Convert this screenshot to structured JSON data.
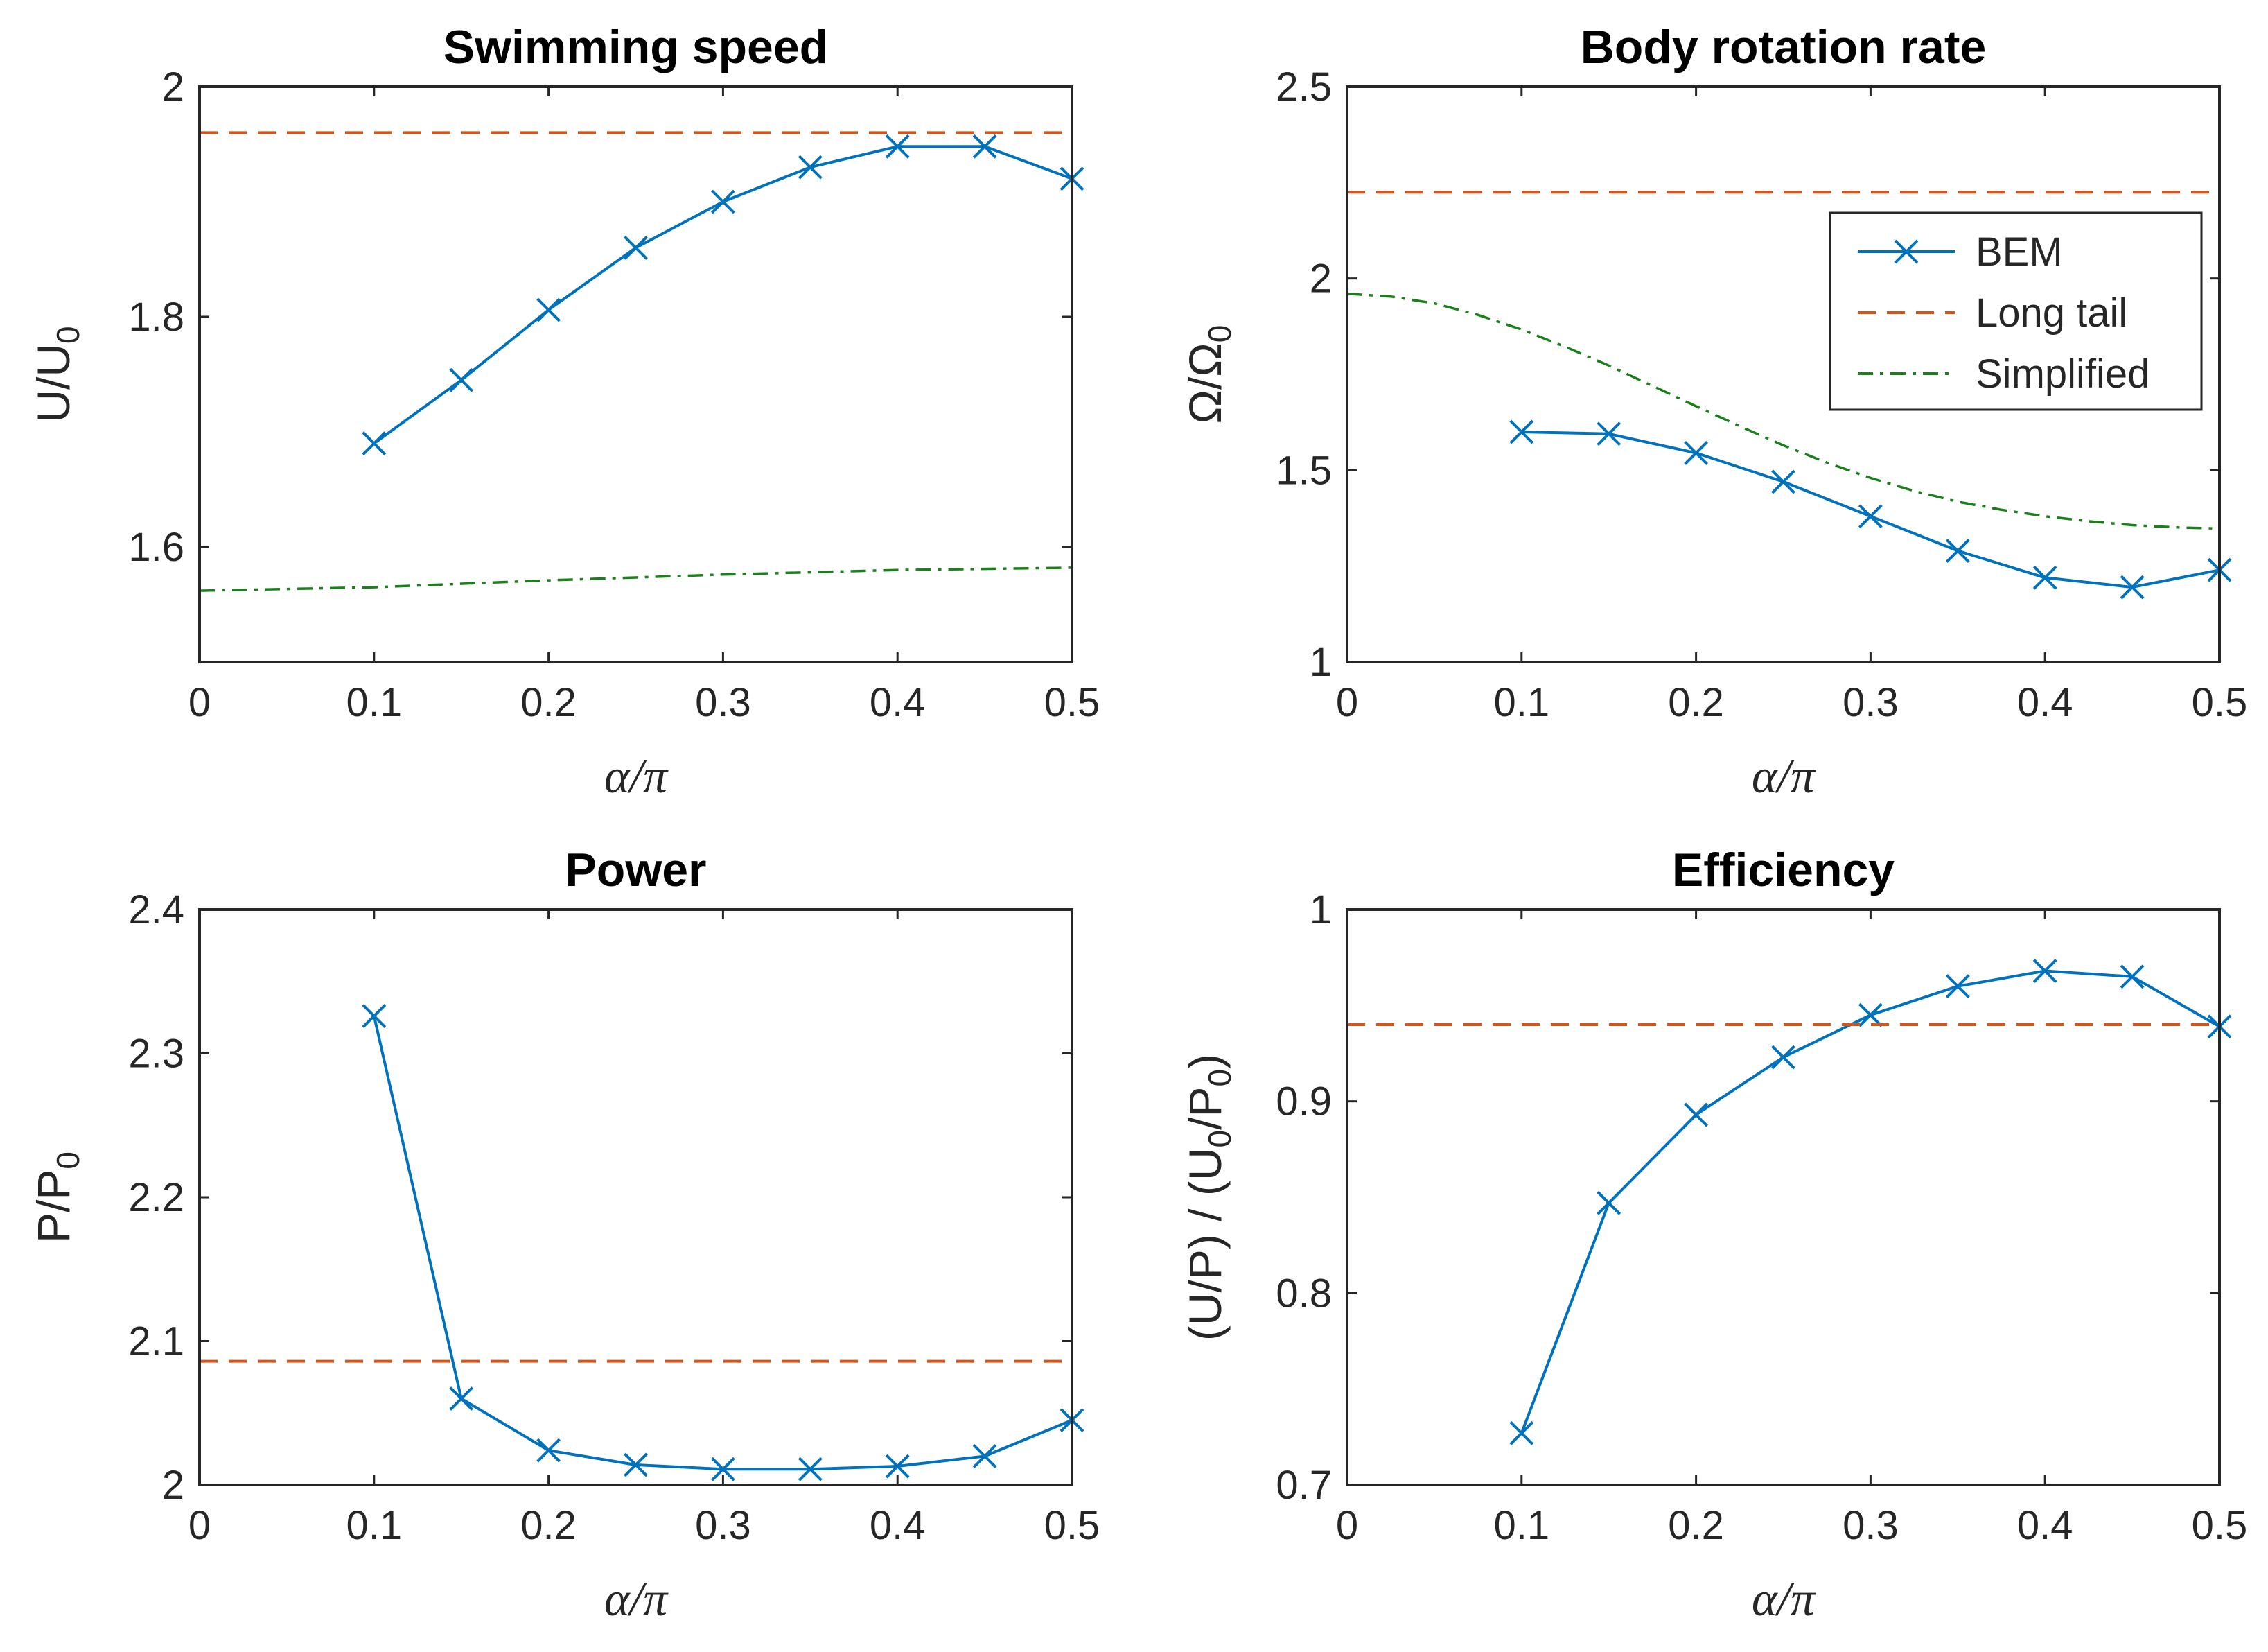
{
  "colors": {
    "bem": "#0072BD",
    "long_tail": "#D95319",
    "simplified": "#1B7F1B",
    "axis": "#262626"
  },
  "legend": {
    "placement": "top-right of Body rotation rate panel",
    "entries": [
      "BEM",
      "Long tail",
      "Simplified"
    ]
  },
  "chart_data": [
    {
      "type": "line",
      "title": "Swimming speed",
      "xlabel": "α/π",
      "ylabel": {
        "main": "U/U",
        "sub": "0"
      },
      "xlim": [
        0,
        0.5
      ],
      "ylim": [
        1.5,
        2.0
      ],
      "xticks": [
        "0",
        "0.1",
        "0.2",
        "0.3",
        "0.4",
        "0.5"
      ],
      "yticks": [
        1.6,
        1.8,
        2.0
      ],
      "ytick_labels": [
        "1.6",
        "1.8",
        "2"
      ],
      "series": [
        {
          "name": "BEM",
          "style": "solid-x",
          "x": [
            0.1,
            0.15,
            0.2,
            0.25,
            0.3,
            0.35,
            0.4,
            0.45,
            0.5
          ],
          "y": [
            1.69,
            1.745,
            1.806,
            1.86,
            1.9,
            1.93,
            1.948,
            1.948,
            1.92
          ]
        },
        {
          "name": "Long tail",
          "style": "dashed",
          "x": [
            0,
            0.5
          ],
          "y": [
            1.96,
            1.96
          ]
        },
        {
          "name": "Simplified",
          "style": "dashdot",
          "x": [
            0,
            0.1,
            0.2,
            0.3,
            0.4,
            0.5
          ],
          "y": [
            1.562,
            1.565,
            1.571,
            1.576,
            1.58,
            1.582
          ]
        }
      ]
    },
    {
      "type": "line",
      "title": "Body rotation rate",
      "xlabel": "α/π",
      "ylabel": {
        "main": "Ω/Ω",
        "sub": "0"
      },
      "xlim": [
        0,
        0.5
      ],
      "ylim": [
        1.0,
        2.5
      ],
      "xticks": [
        "0",
        "0.1",
        "0.2",
        "0.3",
        "0.4",
        "0.5"
      ],
      "yticks": [
        1.0,
        1.5,
        2.0,
        2.5
      ],
      "ytick_labels": [
        "1",
        "1.5",
        "2",
        "2.5"
      ],
      "series": [
        {
          "name": "BEM",
          "style": "solid-x",
          "x": [
            0.1,
            0.15,
            0.2,
            0.25,
            0.3,
            0.35,
            0.4,
            0.45,
            0.5
          ],
          "y": [
            1.6,
            1.595,
            1.545,
            1.47,
            1.38,
            1.29,
            1.22,
            1.195,
            1.24
          ]
        },
        {
          "name": "Long tail",
          "style": "dashed",
          "x": [
            0,
            0.5
          ],
          "y": [
            2.225,
            2.225
          ]
        },
        {
          "name": "Simplified",
          "style": "dashdot",
          "x": [
            0,
            0.025,
            0.05,
            0.075,
            0.1,
            0.125,
            0.15,
            0.175,
            0.2,
            0.225,
            0.25,
            0.275,
            0.3,
            0.325,
            0.35,
            0.375,
            0.4,
            0.425,
            0.45,
            0.475,
            0.5
          ],
          "y": [
            1.96,
            1.953,
            1.935,
            1.905,
            1.867,
            1.822,
            1.773,
            1.72,
            1.667,
            1.615,
            1.565,
            1.52,
            1.48,
            1.446,
            1.418,
            1.397,
            1.38,
            1.367,
            1.357,
            1.351,
            1.348
          ]
        }
      ]
    },
    {
      "type": "line",
      "title": "Power",
      "xlabel": "α/π",
      "ylabel": {
        "main": "P/P",
        "sub": "0"
      },
      "xlim": [
        0,
        0.5
      ],
      "ylim": [
        2.0,
        2.4
      ],
      "xticks": [
        "0",
        "0.1",
        "0.2",
        "0.3",
        "0.4",
        "0.5"
      ],
      "yticks": [
        2.0,
        2.1,
        2.2,
        2.3,
        2.4
      ],
      "ytick_labels": [
        "2",
        "2.1",
        "2.2",
        "2.3",
        "2.4"
      ],
      "series": [
        {
          "name": "BEM",
          "style": "solid-x",
          "x": [
            0.1,
            0.15,
            0.2,
            0.25,
            0.3,
            0.35,
            0.4,
            0.45,
            0.5
          ],
          "y": [
            2.326,
            2.06,
            2.024,
            2.014,
            2.011,
            2.011,
            2.013,
            2.02,
            2.045
          ]
        },
        {
          "name": "Long tail",
          "style": "dashed",
          "x": [
            0,
            0.5
          ],
          "y": [
            2.086,
            2.086
          ]
        }
      ]
    },
    {
      "type": "line",
      "title": "Efficiency",
      "xlabel": "α/π",
      "ylabel": {
        "parts": [
          "(U/P) / (U",
          "0",
          "/P",
          "0",
          ")"
        ]
      },
      "xlim": [
        0,
        0.5
      ],
      "ylim": [
        0.7,
        1.0
      ],
      "xticks": [
        "0",
        "0.1",
        "0.2",
        "0.3",
        "0.4",
        "0.5"
      ],
      "yticks": [
        0.7,
        0.8,
        0.9,
        1.0
      ],
      "ytick_labels": [
        "0.7",
        "0.8",
        "0.9",
        "1"
      ],
      "series": [
        {
          "name": "BEM",
          "style": "solid-x",
          "x": [
            0.1,
            0.15,
            0.2,
            0.25,
            0.3,
            0.35,
            0.4,
            0.45,
            0.5
          ],
          "y": [
            0.727,
            0.847,
            0.893,
            0.923,
            0.945,
            0.96,
            0.968,
            0.965,
            0.939
          ]
        },
        {
          "name": "Long tail",
          "style": "dashed",
          "x": [
            0,
            0.5
          ],
          "y": [
            0.94,
            0.94
          ]
        }
      ]
    }
  ]
}
